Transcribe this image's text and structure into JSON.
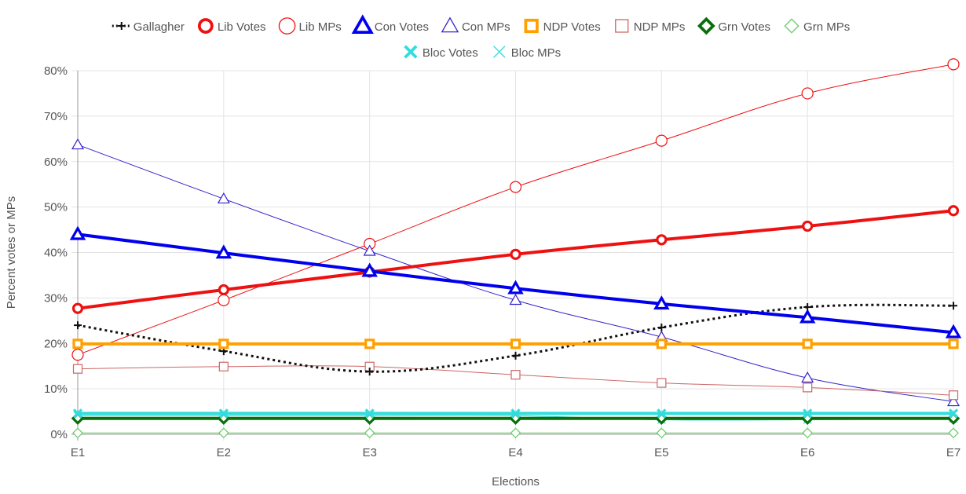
{
  "chart_data": {
    "type": "line",
    "title": "",
    "xlabel": "Elections",
    "ylabel": "Percent votes or MPs",
    "categories": [
      "E1",
      "E2",
      "E3",
      "E4",
      "E5",
      "E6",
      "E7"
    ],
    "yticks": [
      "0%",
      "10%",
      "20%",
      "30%",
      "40%",
      "50%",
      "60%",
      "70%",
      "80%"
    ],
    "ylim": [
      0,
      80
    ],
    "grid": true,
    "legend_position": "top",
    "series": [
      {
        "name": "Gallagher",
        "color": "#111111",
        "marker": "cross",
        "style": "dotted",
        "width": 3,
        "values": [
          24,
          18.3,
          13.8,
          17.3,
          23.5,
          28,
          28.3
        ]
      },
      {
        "name": "Lib Votes",
        "color": "#ee1111",
        "marker": "circle",
        "style": "solid",
        "width": 4,
        "values": [
          27.7,
          31.8,
          35.7,
          39.6,
          42.8,
          45.8,
          49.2
        ]
      },
      {
        "name": "Lib MPs",
        "color": "#ee1111",
        "marker": "circle-thin",
        "style": "solid",
        "width": 1,
        "values": [
          17.5,
          29.5,
          41.9,
          54.4,
          64.6,
          75,
          81.4
        ]
      },
      {
        "name": "Con Votes",
        "color": "#0000ee",
        "marker": "triangle",
        "style": "solid",
        "width": 4,
        "values": [
          44,
          39.9,
          35.9,
          32.1,
          28.7,
          25.7,
          22.4
        ]
      },
      {
        "name": "Con MPs",
        "color": "#3322cc",
        "marker": "triangle-thin",
        "style": "solid",
        "width": 1,
        "values": [
          63.7,
          51.8,
          40.3,
          29.5,
          21.4,
          12.4,
          7.2
        ]
      },
      {
        "name": "NDP Votes",
        "color": "#ffa000",
        "marker": "square",
        "style": "solid",
        "width": 4,
        "values": [
          19.9,
          19.9,
          19.9,
          19.9,
          19.9,
          19.9,
          19.9
        ]
      },
      {
        "name": "NDP MPs",
        "color": "#cc6666",
        "marker": "square-thin",
        "style": "solid",
        "width": 1,
        "values": [
          14.4,
          14.9,
          14.9,
          13.1,
          11.3,
          10.3,
          8.6
        ]
      },
      {
        "name": "Grn Votes",
        "color": "#0a6e0a",
        "marker": "diamond",
        "style": "solid",
        "width": 4,
        "values": [
          3.5,
          3.5,
          3.5,
          3.5,
          3.5,
          3.5,
          3.5
        ]
      },
      {
        "name": "Grn MPs",
        "color": "#66cc66",
        "marker": "diamond-thin",
        "style": "solid",
        "width": 1,
        "values": [
          0.3,
          0.3,
          0.3,
          0.3,
          0.3,
          0.3,
          0.3
        ]
      },
      {
        "name": "Bloc Votes",
        "color": "#33dddd",
        "marker": "x",
        "style": "solid",
        "width": 4,
        "values": [
          4.6,
          4.6,
          4.6,
          4.6,
          4.6,
          4.6,
          4.6
        ]
      },
      {
        "name": "Bloc MPs",
        "color": "#33dddd",
        "marker": "x-thin",
        "style": "solid",
        "width": 1,
        "values": [
          4.1,
          4.1,
          4.1,
          4.1,
          3.2,
          3.2,
          3.5
        ]
      }
    ]
  }
}
